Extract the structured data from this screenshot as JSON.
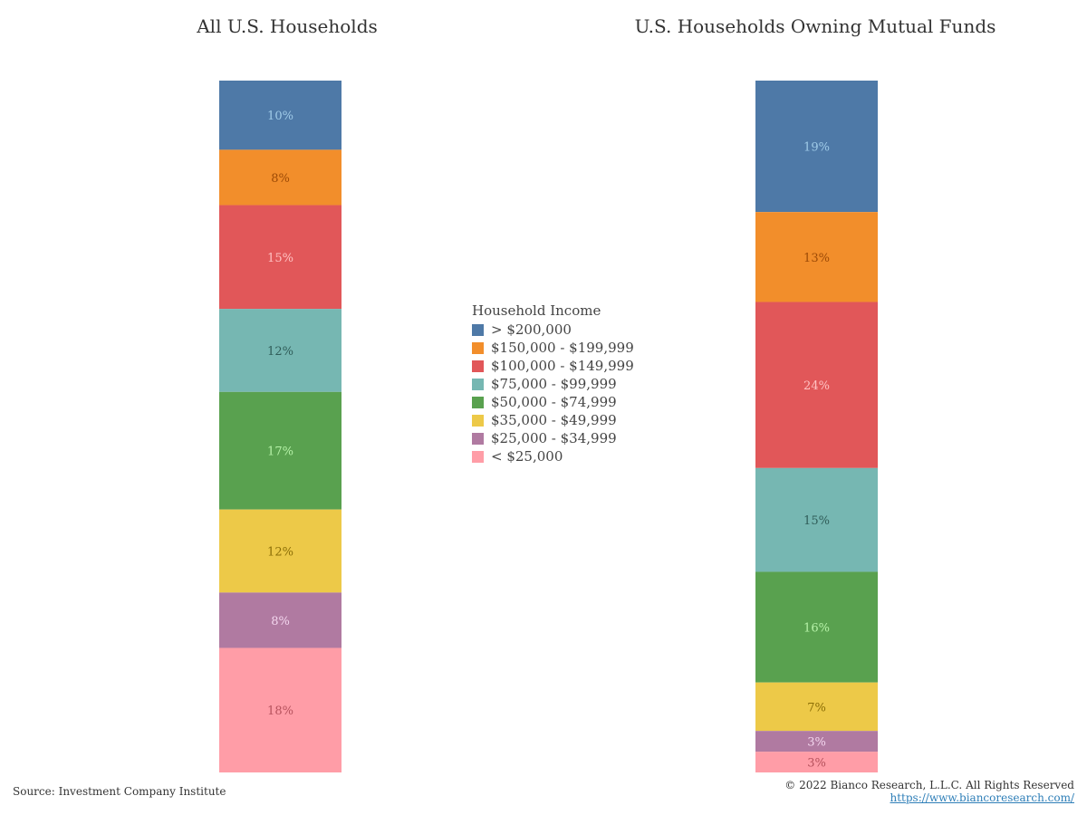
{
  "chart_data": {
    "type": "bar",
    "stacked": true,
    "legend_title": "Household Income",
    "legend_position": "center",
    "charts": [
      {
        "title": "All U.S. Households",
        "values": [
          10,
          8,
          15,
          12,
          17,
          12,
          8,
          18
        ],
        "labels": [
          "10%",
          "8%",
          "15%",
          "12%",
          "17%",
          "12%",
          "8%",
          "18%"
        ]
      },
      {
        "title": "U.S. Households Owning Mutual Funds",
        "values": [
          19,
          13,
          24,
          15,
          16,
          7,
          3,
          3
        ],
        "labels": [
          "19%",
          "13%",
          "24%",
          "15%",
          "16%",
          "7%",
          "3%",
          "3%"
        ]
      }
    ],
    "series": [
      {
        "name": "> $200,000",
        "color": "#4e79a7",
        "label_color": "#a0cbe8"
      },
      {
        "name": "$150,000 - $199,999",
        "color": "#f28e2b",
        "label_color": "#9c4a06"
      },
      {
        "name": "$100,000 - $149,999",
        "color": "#e15759",
        "label_color": "#ffc2c2"
      },
      {
        "name": "$75,000 - $99,999",
        "color": "#76b7b2",
        "label_color": "#2f5c58"
      },
      {
        "name": "$50,000 - $74,999",
        "color": "#59a14f",
        "label_color": "#b6f2a8"
      },
      {
        "name": "$35,000 - $49,999",
        "color": "#edc948",
        "label_color": "#8a6d06"
      },
      {
        "name": "$25,000 - $34,999",
        "color": "#b07aa1",
        "label_color": "#f3d6ee"
      },
      {
        "name": "< $25,000",
        "color": "#ff9da7",
        "label_color": "#b5515c"
      }
    ]
  },
  "footer": {
    "source": "Source: Investment Company Institute",
    "copyright": "© 2022 Bianco Research, L.L.C. All Rights Reserved",
    "url": "https://www.biancoresearch.com/"
  }
}
